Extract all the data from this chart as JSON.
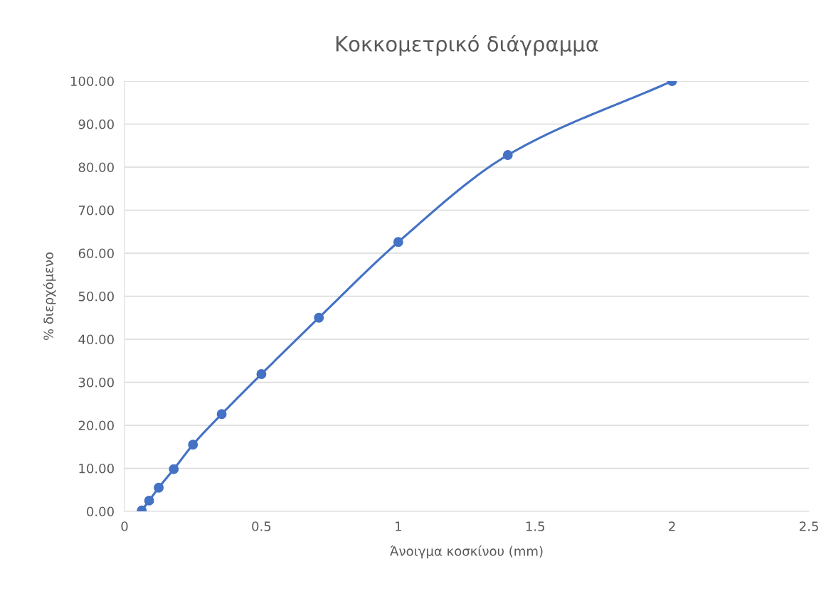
{
  "chart_data": {
    "type": "line",
    "title": "Κοκκομετρικό διάγραμμα",
    "xlabel": "Άνοιγμα κοσκίνου (mm)",
    "ylabel": "% διερχόμενο",
    "x": [
      0.063,
      0.09,
      0.125,
      0.18,
      0.25,
      0.355,
      0.5,
      0.71,
      1,
      1.4,
      2
    ],
    "series": [
      {
        "color": "#4472c4",
        "values": [
          0.2,
          2.5,
          5.5,
          9.8,
          15.5,
          22.6,
          31.9,
          45.0,
          62.6,
          82.8,
          100
        ]
      }
    ],
    "xlim": [
      0,
      2.5
    ],
    "xticks": [
      0,
      0.5,
      1,
      1.5,
      2,
      2.5
    ],
    "ylim": [
      0,
      100
    ],
    "yticks": [
      {
        "value": 0,
        "label": "0.00"
      },
      {
        "value": 10,
        "label": "10.00"
      },
      {
        "value": 20,
        "label": "20.00"
      },
      {
        "value": 30,
        "label": "30.00"
      },
      {
        "value": 40,
        "label": "40.00"
      },
      {
        "value": 50,
        "label": "50.00"
      },
      {
        "value": 60,
        "label": "60.00"
      },
      {
        "value": 70,
        "label": "70.00"
      },
      {
        "value": 80,
        "label": "80.00"
      },
      {
        "value": 90,
        "label": "90.00"
      },
      {
        "value": 100,
        "label": "100.00"
      }
    ],
    "grid": "y",
    "marker": "circle",
    "line_style": "solid"
  }
}
